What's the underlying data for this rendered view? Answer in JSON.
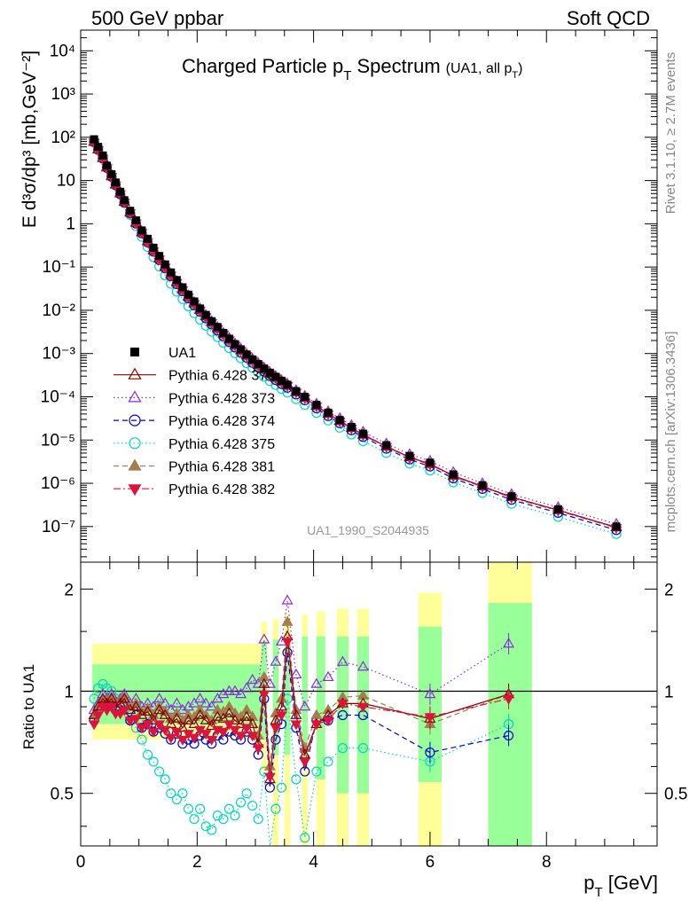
{
  "header": {
    "left": "500 GeV ppbar",
    "right": "Soft QCD",
    "title_main": "Charged Particle p",
    "title_sub": "T",
    "title_rest": " Spectrum",
    "title_note": "(UA1, all p",
    "title_note_sub": "T",
    "title_note_end": ")"
  },
  "side": {
    "rivet": "Rivet 3.1.10, ≥ 2.7M events",
    "mcplots": "mcplots.cern.ch [arXiv:1306.3436]"
  },
  "analysis_id": "UA1_1990_S2044935",
  "colors": {
    "UA1": "#000000",
    "370": "#8b0000",
    "373": "#8a2be2",
    "374": "#0000dd",
    "375": "#00d7c0",
    "381": "#a67c52",
    "382": "#dc143c",
    "band_inner": "#99ff99",
    "band_outer": "#ffff99"
  },
  "chart_data": [
    {
      "type": "scatter",
      "ylabel": "E d³σ/dp³ [mb,GeV⁻²]",
      "yscale": "log",
      "ylim": [
        1.5e-08,
        30000.0
      ],
      "xlim": [
        0,
        9.9
      ],
      "y_ticks": [
        "10⁴",
        "10³",
        "10²",
        "10",
        "1",
        "10⁻¹",
        "10⁻²",
        "10⁻³",
        "10⁻⁴",
        "10⁻⁵",
        "10⁻⁶",
        "10⁻⁷"
      ],
      "legend_position": "left-middle",
      "x": [
        0.23,
        0.3,
        0.38,
        0.45,
        0.53,
        0.6,
        0.68,
        0.75,
        0.85,
        0.95,
        1.05,
        1.15,
        1.25,
        1.35,
        1.45,
        1.55,
        1.65,
        1.75,
        1.85,
        1.95,
        2.05,
        2.15,
        2.25,
        2.35,
        2.45,
        2.55,
        2.65,
        2.75,
        2.85,
        2.95,
        3.05,
        3.15,
        3.25,
        3.35,
        3.45,
        3.55,
        3.7,
        3.85,
        4.05,
        4.25,
        4.45,
        4.65,
        4.85,
        5.25,
        5.65,
        6.0,
        6.4,
        6.9,
        7.4,
        8.2,
        9.2
      ],
      "series": [
        {
          "name": "UA1",
          "marker": "square-filled",
          "line": "none",
          "values": [
            90,
            60,
            38,
            22,
            14,
            9,
            5.5,
            3.5,
            2.0,
            1.2,
            0.7,
            0.45,
            0.28,
            0.18,
            0.115,
            0.075,
            0.05,
            0.034,
            0.023,
            0.016,
            0.011,
            0.0078,
            0.0056,
            0.0041,
            0.003,
            0.0022,
            0.00165,
            0.00125,
            0.00095,
            0.00073,
            0.00057,
            0.00045,
            0.00036,
            0.00029,
            0.000235,
            0.00019,
            0.000135,
            0.0001,
            6.5e-05,
            4.3e-05,
            2.9e-05,
            2e-05,
            1.4e-05,
            7.6e-06,
            4.3e-06,
            3e-06,
            1.6e-06,
            9e-07,
            5e-07,
            2.5e-07,
            1e-07
          ]
        },
        {
          "name": "Pythia 6.428 370",
          "marker": "triangle-up-open",
          "line": "solid",
          "values": [
            78,
            52,
            33,
            20,
            12.5,
            8,
            5,
            3.2,
            1.8,
            1.05,
            0.63,
            0.39,
            0.24,
            0.155,
            0.1,
            0.066,
            0.044,
            0.03,
            0.0206,
            0.0144,
            0.0101,
            0.0072,
            0.0052,
            0.0038,
            0.0028,
            0.00208,
            0.00156,
            0.00118,
            0.0009,
            0.00069,
            0.00054,
            0.000425,
            0.00034,
            0.000275,
            0.000223,
            0.000182,
            0.000128,
            9.4e-05,
            6.1e-05,
            4.05e-05,
            2.75e-05,
            1.9e-05,
            1.33e-05,
            7.1e-06,
            4e-06,
            2.8e-06,
            1.5e-06,
            8.5e-07,
            4.8e-07,
            2.4e-07,
            9.6e-08
          ]
        },
        {
          "name": "Pythia 6.428 373",
          "marker": "triangle-up-open",
          "line": "dotted",
          "values": [
            80,
            54,
            34,
            21,
            13,
            8.3,
            5.2,
            3.3,
            1.87,
            1.1,
            0.66,
            0.41,
            0.255,
            0.165,
            0.107,
            0.07,
            0.047,
            0.032,
            0.022,
            0.0155,
            0.011,
            0.0078,
            0.0056,
            0.0041,
            0.003,
            0.0023,
            0.0017,
            0.0013,
            0.00098,
            0.00076,
            0.0006,
            0.00047,
            0.00037,
            0.0003,
            0.00024,
            0.0002,
            0.000142,
            0.000105,
            6.9e-05,
            4.6e-05,
            3.2e-05,
            2.2e-05,
            1.55e-05,
            8.3e-06,
            4.7e-06,
            3.3e-06,
            1.8e-06,
            1e-06,
            5.6e-07,
            2.8e-07,
            1.15e-07
          ]
        },
        {
          "name": "Pythia 6.428 374",
          "marker": "circle-open",
          "line": "dashed",
          "values": [
            77,
            51,
            32,
            19.5,
            12.2,
            7.8,
            4.8,
            3.1,
            1.74,
            1.01,
            0.6,
            0.37,
            0.226,
            0.145,
            0.093,
            0.061,
            0.04,
            0.0275,
            0.0188,
            0.013,
            0.0092,
            0.0065,
            0.0047,
            0.0034,
            0.0025,
            0.00186,
            0.00139,
            0.00105,
            0.0008,
            0.00061,
            0.00048,
            0.00038,
            0.0003,
            0.000244,
            0.000198,
            0.000162,
            0.000113,
            8.3e-05,
            5.4e-05,
            3.58e-05,
            2.44e-05,
            1.68e-05,
            1.18e-05,
            6.3e-06,
            3.55e-06,
            2.45e-06,
            1.3e-06,
            7.4e-07,
            4.15e-07,
            2.07e-07,
            8.3e-08
          ]
        },
        {
          "name": "Pythia 6.428 375",
          "marker": "circle-open",
          "line": "dotted",
          "values": [
            84,
            57,
            36,
            21.5,
            13.2,
            8.2,
            4.9,
            3.0,
            1.6,
            0.88,
            0.5,
            0.29,
            0.17,
            0.103,
            0.064,
            0.041,
            0.027,
            0.0182,
            0.0124,
            0.0086,
            0.0061,
            0.0044,
            0.0032,
            0.0024,
            0.00178,
            0.00134,
            0.00102,
            0.00078,
            0.0006,
            0.00047,
            0.00037,
            0.00029,
            0.00023,
            0.000187,
            0.000152,
            0.000125,
            8.8e-05,
            6.5e-05,
            4.25e-05,
            2.83e-05,
            1.93e-05,
            1.34e-05,
            9.4e-06,
            5.05e-06,
            2.85e-06,
            1.97e-06,
            1.05e-06,
            6e-07,
            3.35e-07,
            1.67e-07,
            6.7e-08
          ]
        },
        {
          "name": "Pythia 6.428 381",
          "marker": "triangle-up-filled",
          "line": "dashed",
          "values": [
            79,
            53,
            33.5,
            20.3,
            12.7,
            8.1,
            5.05,
            3.25,
            1.82,
            1.07,
            0.64,
            0.395,
            0.243,
            0.157,
            0.102,
            0.067,
            0.045,
            0.0305,
            0.021,
            0.0146,
            0.0103,
            0.0073,
            0.0053,
            0.0039,
            0.00285,
            0.00212,
            0.00159,
            0.0012,
            0.00092,
            0.0007,
            0.00055,
            0.000432,
            0.000346,
            0.00028,
            0.000227,
            0.000185,
            0.00013,
            9.6e-05,
            6.2e-05,
            4.12e-05,
            2.8e-05,
            1.93e-05,
            1.35e-05,
            7.2e-06,
            4.05e-06,
            2.82e-06,
            1.5e-06,
            8.6e-07,
            4.85e-07,
            2.42e-07,
            9.7e-08
          ]
        },
        {
          "name": "Pythia 6.428 382",
          "marker": "triangle-down-filled",
          "line": "dashdot",
          "values": [
            76,
            50.5,
            32,
            19.5,
            12.2,
            7.8,
            4.85,
            3.12,
            1.76,
            1.03,
            0.615,
            0.38,
            0.234,
            0.151,
            0.098,
            0.064,
            0.043,
            0.0293,
            0.0201,
            0.014,
            0.0099,
            0.007,
            0.0051,
            0.0037,
            0.00275,
            0.00204,
            0.00153,
            0.00116,
            0.00088,
            0.00068,
            0.00053,
            0.000418,
            0.000334,
            0.00027,
            0.000219,
            0.000179,
            0.000126,
            9.25e-05,
            6e-05,
            3.98e-05,
            2.7e-05,
            1.86e-05,
            1.3e-05,
            6.95e-06,
            3.9e-06,
            2.72e-06,
            1.45e-06,
            8.3e-07,
            4.65e-07,
            2.33e-07,
            9.3e-08
          ]
        }
      ]
    },
    {
      "type": "scatter",
      "ylabel": "Ratio to UA1",
      "xlabel_main": "p",
      "xlabel_sub": "T",
      "xlabel_unit": " [GeV]",
      "yscale": "log",
      "ylim": [
        0.35,
        2.4
      ],
      "xlim": [
        0,
        9.9
      ],
      "y_ticks": [
        0.5,
        1,
        2
      ],
      "x_ticks": [
        0,
        2,
        4,
        6,
        8
      ],
      "reference": 1,
      "bands": [
        {
          "x": [
            0.2,
            3.1
          ],
          "inner": [
            0.8,
            1.2
          ],
          "outer": [
            0.72,
            1.38
          ]
        },
        {
          "x": [
            3.1,
            3.2
          ],
          "inner": [
            0.72,
            1.4
          ],
          "outer": [
            0.58,
            1.6
          ]
        },
        {
          "x": [
            3.3,
            3.4
          ],
          "inner": [
            0.65,
            1.42
          ],
          "outer": [
            0.35,
            1.63
          ]
        },
        {
          "x": [
            3.5,
            3.6
          ],
          "inner": [
            0.65,
            1.45
          ],
          "outer": [
            0.35,
            1.68
          ]
        },
        {
          "x": [
            3.8,
            3.9
          ],
          "inner": [
            0.6,
            1.45
          ],
          "outer": [
            0.35,
            1.68
          ]
        },
        {
          "x": [
            4.05,
            4.2
          ],
          "inner": [
            0.55,
            1.45
          ],
          "outer": [
            0.35,
            1.72
          ]
        },
        {
          "x": [
            4.4,
            4.6
          ],
          "inner": [
            0.5,
            1.45
          ],
          "outer": [
            0.35,
            1.75
          ]
        },
        {
          "x": [
            4.75,
            4.95
          ],
          "inner": [
            0.5,
            1.45
          ],
          "outer": [
            0.35,
            1.75
          ]
        },
        {
          "x": [
            5.8,
            6.2
          ],
          "inner": [
            0.54,
            1.55
          ],
          "outer": [
            0.35,
            1.95
          ]
        },
        {
          "x": [
            7.0,
            7.75
          ],
          "inner": [
            0.35,
            1.82
          ],
          "outer": [
            0.35,
            2.4
          ]
        }
      ],
      "x": [
        0.23,
        0.3,
        0.38,
        0.45,
        0.53,
        0.6,
        0.68,
        0.75,
        0.85,
        0.95,
        1.05,
        1.15,
        1.25,
        1.35,
        1.45,
        1.55,
        1.65,
        1.75,
        1.85,
        1.95,
        2.05,
        2.15,
        2.25,
        2.35,
        2.45,
        2.55,
        2.65,
        2.75,
        2.85,
        2.95,
        3.05,
        3.15,
        3.25,
        3.35,
        3.45,
        3.55,
        3.7,
        3.85,
        4.05,
        4.25,
        4.5,
        4.85,
        6.0,
        7.35
      ],
      "series": [
        {
          "name": "Pythia 6.428 370",
          "values": [
            0.85,
            0.9,
            0.95,
            0.92,
            0.95,
            0.9,
            0.92,
            0.95,
            0.88,
            0.9,
            0.85,
            0.87,
            0.82,
            0.88,
            0.85,
            0.8,
            0.83,
            0.78,
            0.82,
            0.8,
            0.85,
            0.82,
            0.79,
            0.84,
            0.83,
            0.86,
            0.82,
            0.8,
            0.84,
            0.8,
            0.7,
            1.05,
            0.55,
            0.82,
            0.9,
            1.45,
            0.85,
            0.65,
            0.8,
            0.85,
            0.92,
            0.92,
            0.83,
            0.98
          ]
        },
        {
          "name": "Pythia 6.428 373",
          "values": [
            0.88,
            0.92,
            0.98,
            0.95,
            0.98,
            0.93,
            0.95,
            0.98,
            0.92,
            0.95,
            0.9,
            0.92,
            0.9,
            0.95,
            0.92,
            0.88,
            0.92,
            0.88,
            0.9,
            0.92,
            0.95,
            0.92,
            0.9,
            0.95,
            0.98,
            1.0,
            1.0,
            0.98,
            1.02,
            1.08,
            1.05,
            1.42,
            1.05,
            1.22,
            1.4,
            1.85,
            1.12,
            0.9,
            1.05,
            1.1,
            1.22,
            1.18,
            0.98,
            1.38
          ]
        },
        {
          "name": "Pythia 6.428 374",
          "values": [
            0.82,
            0.88,
            0.92,
            0.9,
            0.92,
            0.88,
            0.88,
            0.9,
            0.82,
            0.85,
            0.78,
            0.8,
            0.76,
            0.78,
            0.75,
            0.72,
            0.75,
            0.7,
            0.72,
            0.7,
            0.74,
            0.72,
            0.7,
            0.74,
            0.72,
            0.76,
            0.74,
            0.72,
            0.76,
            0.72,
            0.65,
            0.95,
            0.52,
            0.72,
            0.8,
            1.3,
            0.78,
            0.58,
            0.82,
            0.82,
            0.85,
            0.85,
            0.66,
            0.74
          ]
        },
        {
          "name": "Pythia 6.428 375",
          "values": [
            0.95,
            1.02,
            1.05,
            1.02,
            1.0,
            0.95,
            0.92,
            0.88,
            0.82,
            0.78,
            0.72,
            0.65,
            0.62,
            0.58,
            0.55,
            0.5,
            0.48,
            0.5,
            0.45,
            0.42,
            0.45,
            0.4,
            0.39,
            0.43,
            0.42,
            0.45,
            0.43,
            0.47,
            0.5,
            0.46,
            0.42,
            0.58,
            0.34,
            0.45,
            0.52,
            0.95,
            0.55,
            0.37,
            0.58,
            0.62,
            0.68,
            0.68,
            0.62,
            0.8
          ]
        },
        {
          "name": "Pythia 6.428 381",
          "values": [
            0.85,
            0.9,
            0.95,
            0.94,
            0.96,
            0.92,
            0.94,
            0.96,
            0.9,
            0.92,
            0.87,
            0.89,
            0.85,
            0.9,
            0.87,
            0.83,
            0.86,
            0.82,
            0.85,
            0.84,
            0.88,
            0.85,
            0.82,
            0.88,
            0.87,
            0.9,
            0.86,
            0.84,
            0.88,
            0.84,
            0.74,
            1.1,
            0.6,
            0.86,
            0.95,
            1.6,
            0.88,
            0.68,
            0.85,
            0.88,
            0.96,
            0.97,
            0.8,
            0.98
          ]
        },
        {
          "name": "Pythia 6.428 382",
          "values": [
            0.8,
            0.85,
            0.9,
            0.88,
            0.9,
            0.86,
            0.86,
            0.88,
            0.82,
            0.83,
            0.78,
            0.8,
            0.76,
            0.8,
            0.77,
            0.73,
            0.76,
            0.72,
            0.75,
            0.73,
            0.77,
            0.75,
            0.72,
            0.77,
            0.76,
            0.8,
            0.77,
            0.74,
            0.78,
            0.74,
            0.68,
            0.98,
            0.56,
            0.78,
            0.85,
            1.4,
            0.8,
            0.62,
            0.8,
            0.82,
            0.92,
            0.9,
            0.84,
            0.95
          ]
        }
      ]
    }
  ]
}
